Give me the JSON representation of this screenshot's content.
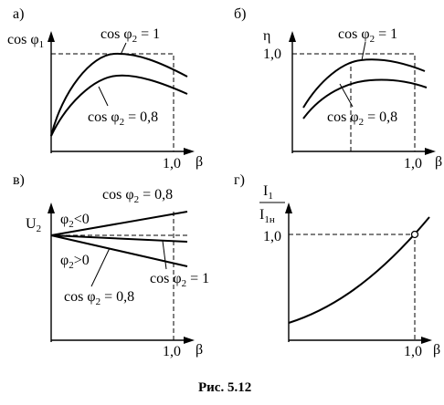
{
  "panels": {
    "a": {
      "letter": "а)",
      "y_axis_label": "cos φ",
      "y_axis_sub": "1",
      "x_axis_label": "β",
      "x_tick": "1,0",
      "curve_upper": {
        "prefix": "cos φ",
        "sub": "2",
        "suffix": " = 1"
      },
      "curve_lower": {
        "prefix": "cos φ",
        "sub": "2",
        "suffix": " = 0,8"
      }
    },
    "b": {
      "letter": "б)",
      "y_axis_label": "η",
      "y_tick": "1,0",
      "x_axis_label": "β",
      "x_tick": "1,0",
      "curve_upper": {
        "prefix": "cos φ",
        "sub": "2",
        "suffix": " = 1"
      },
      "curve_lower": {
        "prefix": "cos φ",
        "sub": "2",
        "suffix": " = 0,8"
      }
    },
    "v": {
      "letter": "в)",
      "y_axis_label": "U",
      "y_axis_sub": "2",
      "x_axis_label": "β",
      "x_tick": "1,0",
      "region_upper": "φ",
      "region_upper_sub": "2",
      "region_upper_rel": "<0",
      "region_lower": "φ",
      "region_lower_sub": "2",
      "region_lower_rel": ">0",
      "curve_top": {
        "prefix": "cos φ",
        "sub": "2",
        "suffix": " = 0,8"
      },
      "curve_mid": {
        "prefix": "cos φ",
        "sub": "2",
        "suffix": " = 1"
      },
      "curve_bottom": {
        "prefix": "cos φ",
        "sub": "2",
        "suffix": " = 0,8"
      }
    },
    "g": {
      "letter": "г)",
      "y_num": "I",
      "y_num_sub": "1",
      "y_den": "I",
      "y_den_sub": "1н",
      "y_tick": "1,0",
      "x_axis_label": "β",
      "x_tick": "1,0"
    }
  },
  "caption": "Рис. 5.12"
}
